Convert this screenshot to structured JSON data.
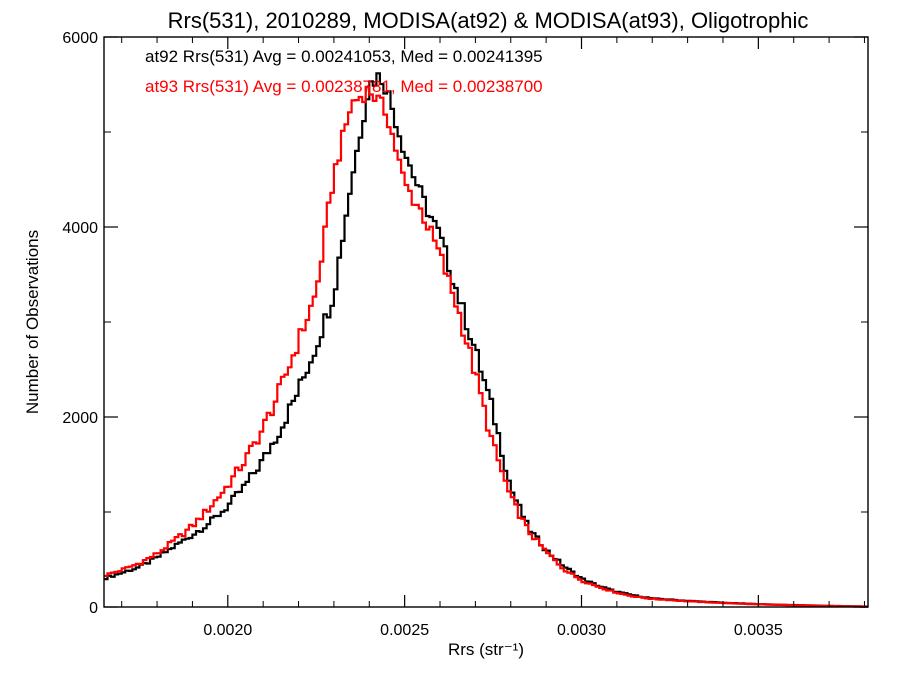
{
  "chart_data": {
    "type": "line",
    "style": "histogram-step",
    "title": "Rrs(531), 2010289, MODISA(at92) & MODISA(at93), Oligotrophic",
    "xlabel": "Rrs (str⁻¹)",
    "ylabel": "Number of Observations",
    "xlim": [
      0.00165,
      0.00381
    ],
    "ylim": [
      0,
      6000
    ],
    "x_ticks": [
      0.002,
      0.0025,
      0.003,
      0.0035
    ],
    "x_tick_labels": [
      "0.0020",
      "0.0025",
      "0.0030",
      "0.0035"
    ],
    "y_ticks": [
      0,
      2000,
      4000,
      6000
    ],
    "y_tick_labels": [
      "0",
      "2000",
      "4000",
      "6000"
    ],
    "x_minor_step": 0.0001,
    "y_minor_step": 1000,
    "grid": false,
    "legend_placement": "top-left",
    "annotations": [
      {
        "text": "at92 Rrs(531) Avg = 0.00241053, Med = 0.00241395",
        "color": "#000000"
      },
      {
        "text": "at93 Rrs(531) Avg = 0.00238781, Med = 0.00238700",
        "color": "#ff0000"
      }
    ],
    "series": [
      {
        "name": "at92",
        "color": "#000000",
        "points": [
          [
            0.00165,
            300
          ],
          [
            0.0017,
            360
          ],
          [
            0.00175,
            420
          ],
          [
            0.0018,
            520
          ],
          [
            0.00185,
            640
          ],
          [
            0.0019,
            760
          ],
          [
            0.00195,
            890
          ],
          [
            0.002,
            1060
          ],
          [
            0.00205,
            1280
          ],
          [
            0.0021,
            1550
          ],
          [
            0.00215,
            1880
          ],
          [
            0.0022,
            2280
          ],
          [
            0.00225,
            2750
          ],
          [
            0.0023,
            3300
          ],
          [
            0.00235,
            4500
          ],
          [
            0.0024,
            5500
          ],
          [
            0.00243,
            5600
          ],
          [
            0.00245,
            5450
          ],
          [
            0.0025,
            4800
          ],
          [
            0.00255,
            4300
          ],
          [
            0.0026,
            3900
          ],
          [
            0.00265,
            3300
          ],
          [
            0.0027,
            2700
          ],
          [
            0.00275,
            2050
          ],
          [
            0.0028,
            1250
          ],
          [
            0.00285,
            830
          ],
          [
            0.0029,
            600
          ],
          [
            0.00295,
            430
          ],
          [
            0.003,
            300
          ],
          [
            0.00305,
            220
          ],
          [
            0.0031,
            160
          ],
          [
            0.00315,
            120
          ],
          [
            0.0032,
            90
          ],
          [
            0.0033,
            65
          ],
          [
            0.0034,
            45
          ],
          [
            0.0035,
            30
          ],
          [
            0.0036,
            20
          ],
          [
            0.0037,
            12
          ],
          [
            0.0038,
            5
          ]
        ]
      },
      {
        "name": "at93",
        "color": "#ff0000",
        "points": [
          [
            0.00165,
            330
          ],
          [
            0.0017,
            390
          ],
          [
            0.00175,
            460
          ],
          [
            0.0018,
            560
          ],
          [
            0.00185,
            700
          ],
          [
            0.0019,
            850
          ],
          [
            0.00195,
            1050
          ],
          [
            0.002,
            1280
          ],
          [
            0.00205,
            1550
          ],
          [
            0.0021,
            1880
          ],
          [
            0.00215,
            2300
          ],
          [
            0.0022,
            2800
          ],
          [
            0.00225,
            3300
          ],
          [
            0.0023,
            4550
          ],
          [
            0.00235,
            5300
          ],
          [
            0.0024,
            5450
          ],
          [
            0.00245,
            5200
          ],
          [
            0.0025,
            4450
          ],
          [
            0.00255,
            4150
          ],
          [
            0.0026,
            3700
          ],
          [
            0.00265,
            3150
          ],
          [
            0.0027,
            2450
          ],
          [
            0.00275,
            1700
          ],
          [
            0.0028,
            1150
          ],
          [
            0.00285,
            800
          ],
          [
            0.0029,
            580
          ],
          [
            0.00295,
            400
          ],
          [
            0.003,
            280
          ],
          [
            0.00305,
            210
          ],
          [
            0.0031,
            150
          ],
          [
            0.00315,
            110
          ],
          [
            0.0032,
            85
          ],
          [
            0.0033,
            60
          ],
          [
            0.0034,
            42
          ],
          [
            0.0035,
            28
          ],
          [
            0.0036,
            18
          ],
          [
            0.0037,
            10
          ],
          [
            0.0038,
            4
          ]
        ]
      }
    ]
  }
}
